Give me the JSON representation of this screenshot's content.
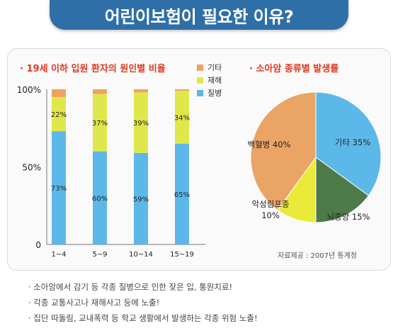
{
  "banner": {
    "title": "어린이보험이 필요한 이유?"
  },
  "left_chart_title": "· 19세 이하 입원 환자의 원인별 비율",
  "right_chart_title": "· 소아암 종류별 발생률",
  "source": "자료제공 : 2007년 통계청",
  "bullets": [
    "· 소아암에서 감기 등 각종 질병으로 인한 잦은 입, 통원치료!",
    "· 각종 교통사고나 재해사고 등에 노출!",
    "· 집단 따돌림, 교내폭력 등 학교 생활에서 발생하는 각종 위험 노출!"
  ],
  "colors": {
    "banner": "#2f6fa8",
    "title_red": "#e03a1e",
    "disease": "#5db8ea",
    "accident": "#dfe84a",
    "other": "#efa262",
    "pie_leukemia": "#eaa466",
    "pie_other": "#5db8ea",
    "pie_brain": "#4e7a4a",
    "pie_lymphoma": "#eaea3a"
  },
  "chart_data": [
    {
      "type": "bar",
      "stacked": true,
      "categories": [
        "1~4",
        "5~9",
        "10~14",
        "15~19"
      ],
      "yticks": [
        "0",
        "50%",
        "100%"
      ],
      "ylim": [
        0,
        100
      ],
      "legend": [
        "기타",
        "재해",
        "질병"
      ],
      "legend_colors": [
        "#efa262",
        "#dfe84a",
        "#5db8ea"
      ],
      "series": [
        {
          "name": "질병",
          "values": [
            73,
            60,
            59,
            65
          ],
          "labels": [
            "73%",
            "60%",
            "59%",
            "65%"
          ],
          "color": "#5db8ea"
        },
        {
          "name": "재해",
          "values": [
            22,
            37,
            39,
            34
          ],
          "labels": [
            "22%",
            "37%",
            "39%",
            "34%"
          ],
          "color": "#dfe84a"
        },
        {
          "name": "기타",
          "values": [
            5,
            3,
            2,
            1
          ],
          "color": "#efa262"
        }
      ]
    },
    {
      "type": "pie",
      "slices": [
        {
          "label": "기타 35%",
          "value": 35,
          "color": "#5db8ea"
        },
        {
          "label": "뇌종양 15%",
          "value": 15,
          "color": "#4e7a4a"
        },
        {
          "label": "악성림프종\n10%",
          "value": 10,
          "color": "#eaea3a"
        },
        {
          "label": "백혈병 40%",
          "value": 40,
          "color": "#eaa466"
        }
      ]
    }
  ]
}
